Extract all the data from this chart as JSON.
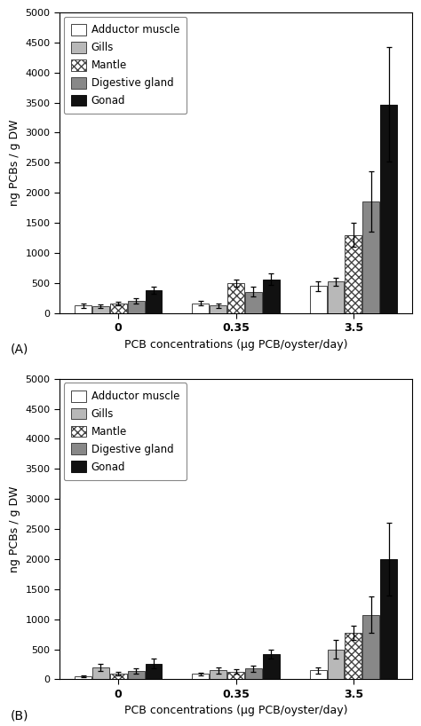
{
  "chart_A": {
    "groups": [
      "0",
      "0.35",
      "3.5"
    ],
    "series_order": [
      "Adductor muscle",
      "Gills",
      "Mantle",
      "Digestive gland",
      "Gonad"
    ],
    "values": {
      "Adductor muscle": [
        120,
        160,
        450
      ],
      "Gills": [
        110,
        120,
        520
      ],
      "Mantle": [
        150,
        500,
        1300
      ],
      "Digestive gland": [
        200,
        350,
        1850
      ],
      "Gonad": [
        380,
        560,
        3470
      ]
    },
    "errors": {
      "Adductor muscle": [
        30,
        40,
        80
      ],
      "Gills": [
        25,
        30,
        70
      ],
      "Mantle": [
        30,
        60,
        200
      ],
      "Digestive gland": [
        50,
        80,
        500
      ],
      "Gonad": [
        60,
        100,
        950
      ]
    }
  },
  "chart_B": {
    "groups": [
      "0",
      "0.35",
      "3.5"
    ],
    "series_order": [
      "Adductor muscle",
      "Gills",
      "Mantle",
      "Digestive gland",
      "Gonad"
    ],
    "values": {
      "Adductor muscle": [
        50,
        90,
        150
      ],
      "Gills": [
        200,
        150,
        500
      ],
      "Mantle": [
        100,
        130,
        775
      ],
      "Digestive gland": [
        140,
        180,
        1075
      ],
      "Gonad": [
        260,
        420,
        2000
      ]
    },
    "errors": {
      "Adductor muscle": [
        15,
        25,
        50
      ],
      "Gills": [
        60,
        50,
        150
      ],
      "Mantle": [
        30,
        40,
        120
      ],
      "Digestive gland": [
        40,
        50,
        300
      ],
      "Gonad": [
        80,
        80,
        600
      ]
    }
  },
  "bar_styles": [
    {
      "facecolor": "white",
      "hatch": "",
      "edgecolor": "#444444",
      "label": "Adductor muscle"
    },
    {
      "facecolor": "#b8b8b8",
      "hatch": "",
      "edgecolor": "#444444",
      "label": "Gills"
    },
    {
      "facecolor": "white",
      "hatch": "xxxx",
      "edgecolor": "#444444",
      "label": "Mantle"
    },
    {
      "facecolor": "#888888",
      "hatch": "",
      "edgecolor": "#444444",
      "label": "Digestive gland"
    },
    {
      "facecolor": "#111111",
      "hatch": "",
      "edgecolor": "#111111",
      "label": "Gonad"
    }
  ],
  "ylabel": "ng PCBs / g DW",
  "xlabel": "PCB concentrations (μg PCB/oyster/day)",
  "ylim": [
    0,
    5000
  ],
  "yticks": [
    0,
    500,
    1000,
    1500,
    2000,
    2500,
    3000,
    3500,
    4000,
    4500,
    5000
  ],
  "label_A": "(A)",
  "label_B": "(B)"
}
